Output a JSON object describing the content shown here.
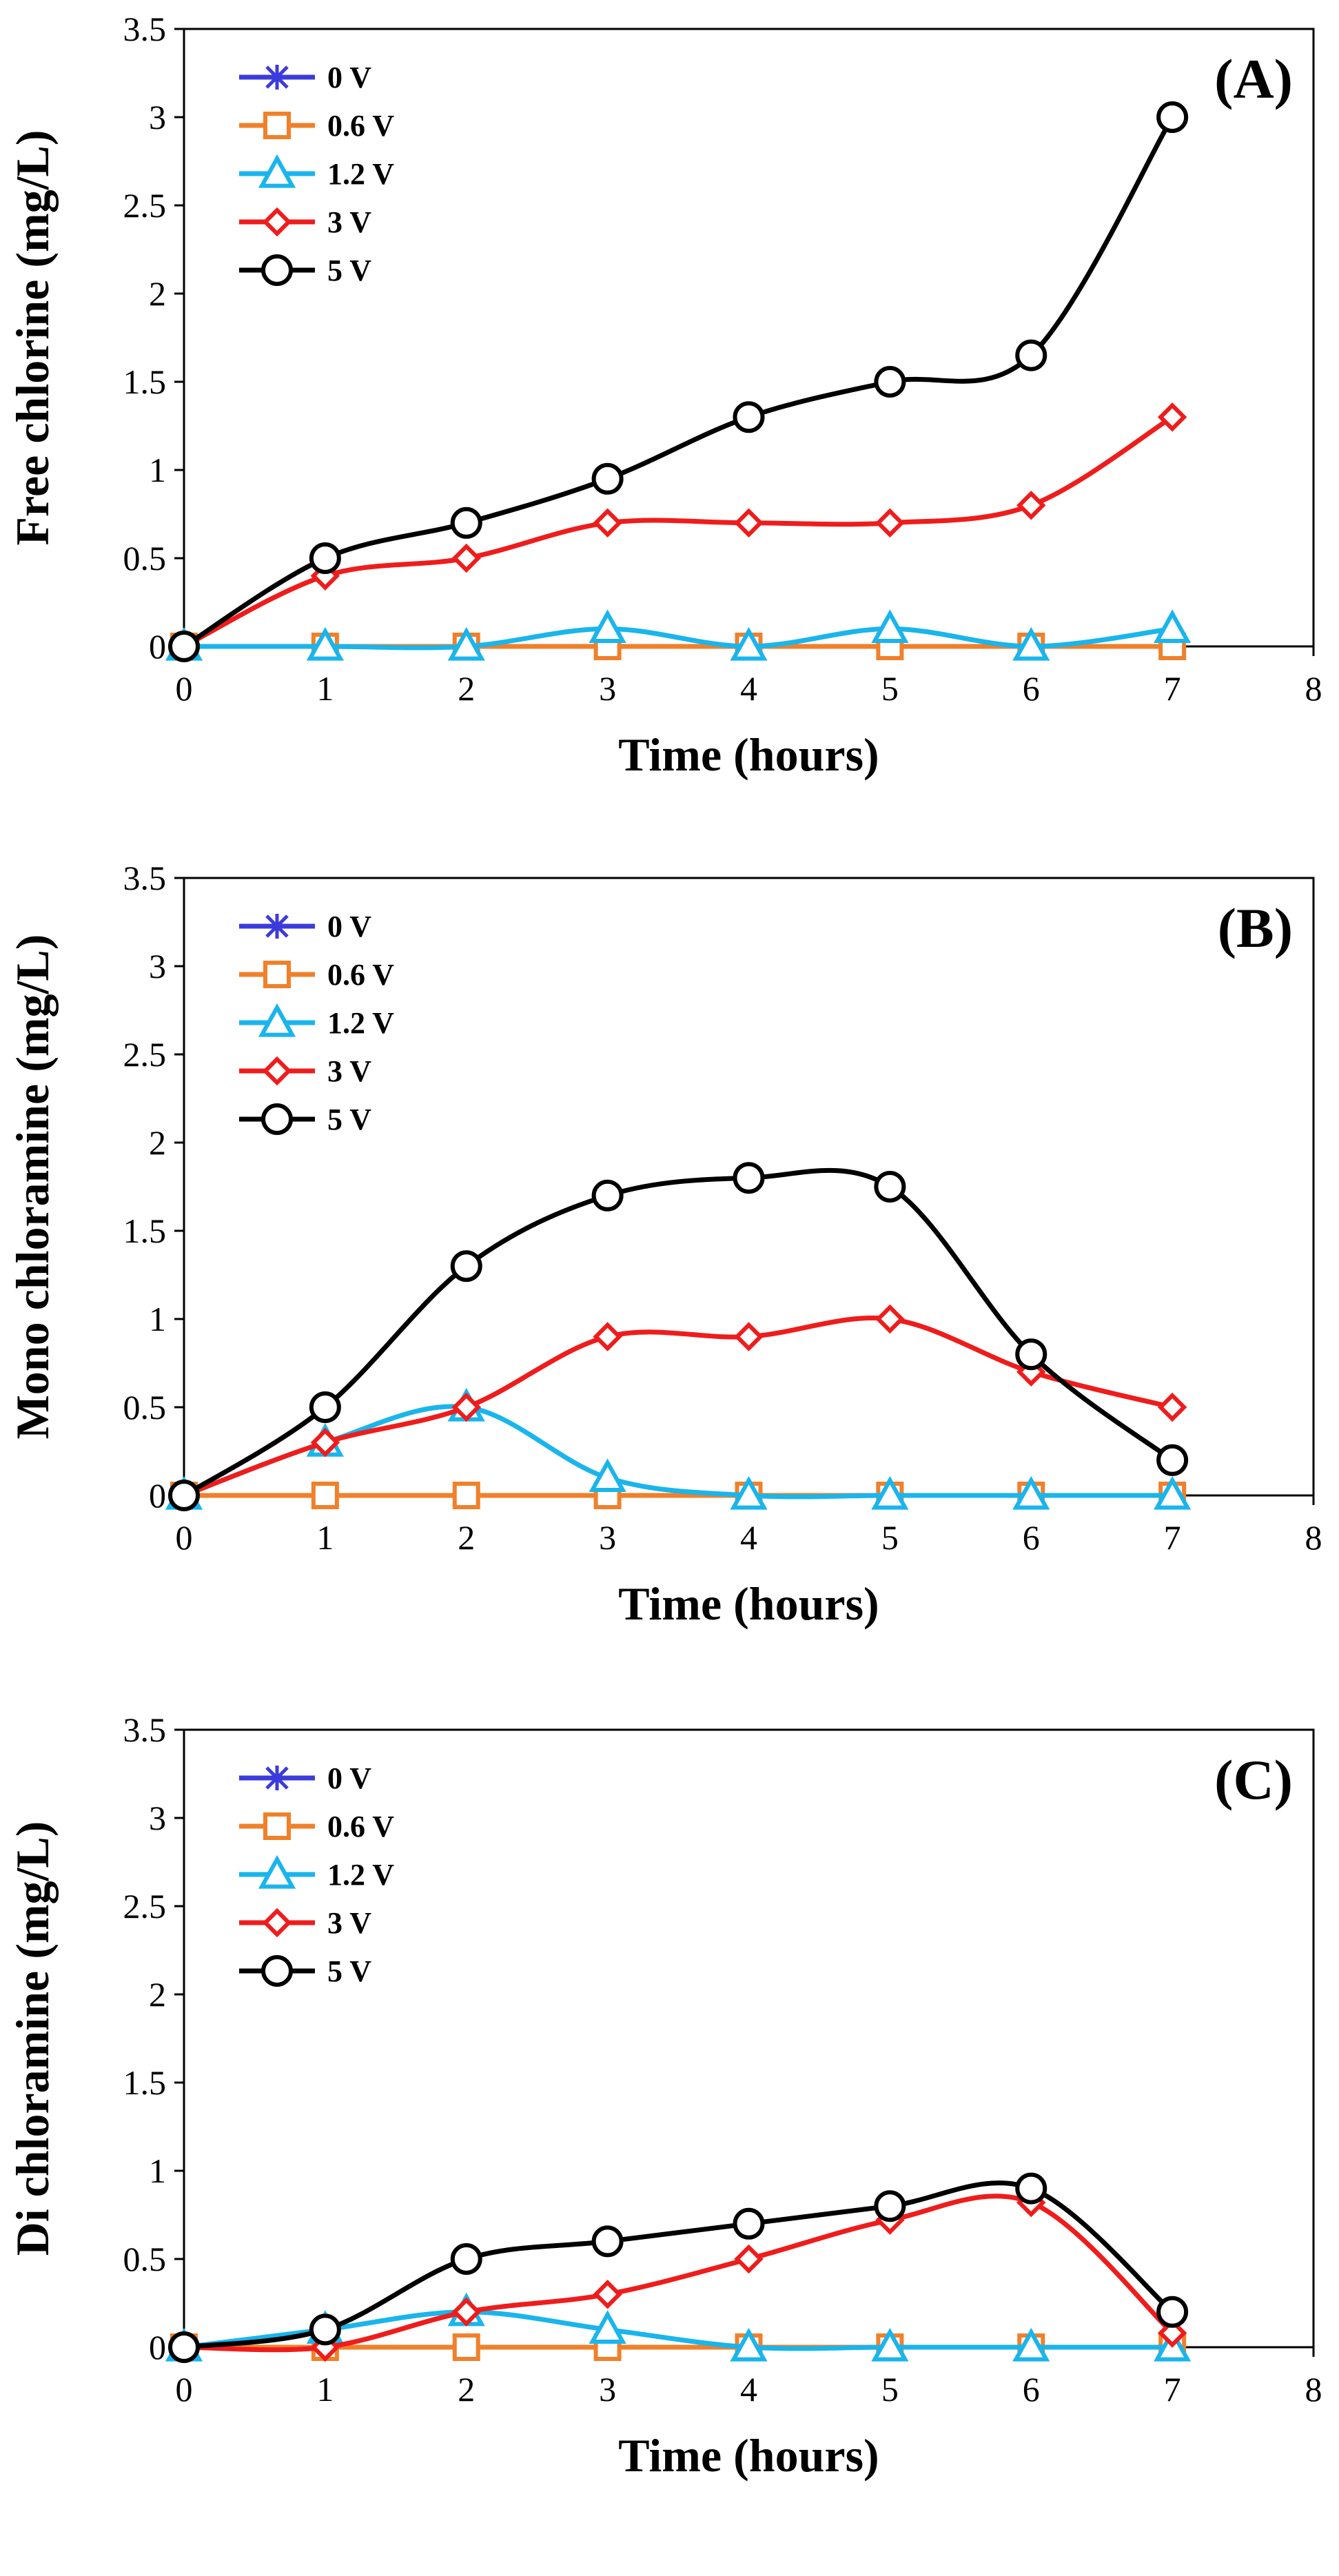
{
  "series_style": [
    {
      "name": "0 V",
      "color": "#3b3bdc",
      "marker": "star"
    },
    {
      "name": "0.6 V",
      "color": "#f0802a",
      "marker": "square"
    },
    {
      "name": "1.2 V",
      "color": "#19b5ec",
      "marker": "triangle"
    },
    {
      "name": "3 V",
      "color": "#ef1c1c",
      "marker": "diamond"
    },
    {
      "name": "5 V",
      "color": "#000000",
      "marker": "circle"
    }
  ],
  "chart_data": [
    {
      "type": "line",
      "panel_label": "(A)",
      "xlabel": "Time (hours)",
      "ylabel": "Free chlorine (mg/L)",
      "xlim": [
        0,
        8
      ],
      "ylim": [
        0,
        3.5
      ],
      "xticks": [
        "0",
        "1",
        "2",
        "3",
        "4",
        "5",
        "6",
        "7",
        "8"
      ],
      "yticks": [
        "0",
        "0.5",
        "1",
        "1.5",
        "2",
        "2.5",
        "3",
        "3.5"
      ],
      "grid": false,
      "legend_position": "top-left",
      "x": [
        0,
        1,
        2,
        3,
        4,
        5,
        6,
        7
      ],
      "series": [
        {
          "name": "0 V",
          "values": [
            0,
            0,
            0,
            0,
            0,
            0,
            0,
            0
          ]
        },
        {
          "name": "0.6 V",
          "values": [
            0,
            0,
            0,
            0,
            0,
            0,
            0,
            0
          ]
        },
        {
          "name": "1.2 V",
          "values": [
            0,
            0,
            0,
            0.1,
            0,
            0.1,
            0,
            0.1
          ]
        },
        {
          "name": "3 V",
          "values": [
            0,
            0.4,
            0.5,
            0.7,
            0.7,
            0.7,
            0.8,
            1.3
          ]
        },
        {
          "name": "5 V",
          "values": [
            0,
            0.5,
            0.7,
            0.95,
            1.3,
            1.5,
            1.65,
            3.0
          ]
        }
      ]
    },
    {
      "type": "line",
      "panel_label": "(B)",
      "xlabel": "Time (hours)",
      "ylabel": "Mono chloramine (mg/L)",
      "xlim": [
        0,
        8
      ],
      "ylim": [
        0,
        3.5
      ],
      "xticks": [
        "0",
        "1",
        "2",
        "3",
        "4",
        "5",
        "6",
        "7",
        "8"
      ],
      "yticks": [
        "0",
        "0.5",
        "1",
        "1.5",
        "2",
        "2.5",
        "3",
        "3.5"
      ],
      "grid": false,
      "legend_position": "top-left",
      "x": [
        0,
        1,
        2,
        3,
        4,
        5,
        6,
        7
      ],
      "series": [
        {
          "name": "0 V",
          "values": [
            0,
            0,
            0,
            0,
            0,
            0,
            0,
            0
          ]
        },
        {
          "name": "0.6 V",
          "values": [
            0,
            0,
            0,
            0,
            0,
            0,
            0,
            0
          ]
        },
        {
          "name": "1.2 V",
          "values": [
            0,
            0.3,
            0.5,
            0.1,
            0,
            0,
            0,
            0
          ]
        },
        {
          "name": "3 V",
          "values": [
            0,
            0.3,
            0.5,
            0.9,
            0.9,
            1.0,
            0.7,
            0.5
          ]
        },
        {
          "name": "5 V",
          "values": [
            0,
            0.5,
            1.3,
            1.7,
            1.8,
            1.75,
            0.8,
            0.2
          ]
        }
      ]
    },
    {
      "type": "line",
      "panel_label": "(C)",
      "xlabel": "Time (hours)",
      "ylabel": "Di chloramine (mg/L)",
      "xlim": [
        0,
        8
      ],
      "ylim": [
        0,
        3.5
      ],
      "xticks": [
        "0",
        "1",
        "2",
        "3",
        "4",
        "5",
        "6",
        "7",
        "8"
      ],
      "yticks": [
        "0",
        "0.5",
        "1",
        "1.5",
        "2",
        "2.5",
        "3",
        "3.5"
      ],
      "grid": false,
      "legend_position": "top-left",
      "x": [
        0,
        1,
        2,
        3,
        4,
        5,
        6,
        7
      ],
      "series": [
        {
          "name": "0 V",
          "values": [
            0,
            0,
            0,
            0,
            0,
            0,
            0,
            0
          ]
        },
        {
          "name": "0.6 V",
          "values": [
            0,
            0,
            0,
            0,
            0,
            0,
            0,
            0
          ]
        },
        {
          "name": "1.2 V",
          "values": [
            0,
            0.1,
            0.2,
            0.1,
            0,
            0,
            0,
            0
          ]
        },
        {
          "name": "3 V",
          "values": [
            0,
            0,
            0.2,
            0.3,
            0.5,
            0.72,
            0.82,
            0.08
          ]
        },
        {
          "name": "5 V",
          "values": [
            0,
            0.1,
            0.5,
            0.6,
            0.7,
            0.8,
            0.9,
            0.2
          ]
        }
      ]
    }
  ]
}
